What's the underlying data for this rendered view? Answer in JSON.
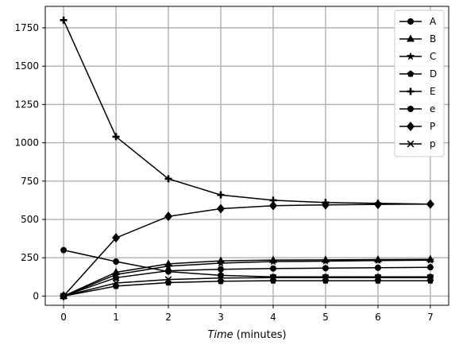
{
  "chart_data": {
    "type": "line",
    "title": "",
    "xlabel_italic": "Time",
    "xlabel_rest": " (minutes)",
    "ylabel": "",
    "x": [
      0,
      1,
      2,
      3,
      4,
      5,
      6,
      7
    ],
    "xticks": [
      "0",
      "1",
      "2",
      "3",
      "4",
      "5",
      "6",
      "7"
    ],
    "yticks": [
      "0",
      "250",
      "500",
      "750",
      "1000",
      "1250",
      "1500",
      "1750"
    ],
    "xlim": [
      -0.35,
      7.35
    ],
    "ylim": [
      -60,
      1890
    ],
    "grid": true,
    "legend_position": "top-right",
    "series": [
      {
        "name": "A",
        "marker": "circle",
        "values": [
          0,
          120,
          165,
          175,
          180,
          182,
          185,
          188
        ]
      },
      {
        "name": "B",
        "marker": "triangle",
        "values": [
          0,
          155,
          210,
          230,
          235,
          236,
          238,
          240
        ]
      },
      {
        "name": "C",
        "marker": "star",
        "values": [
          0,
          140,
          195,
          215,
          225,
          228,
          232,
          234
        ]
      },
      {
        "name": "D",
        "marker": "pentagon",
        "values": [
          0,
          65,
          88,
          97,
          100,
          100,
          100,
          100
        ]
      },
      {
        "name": "E",
        "marker": "plus",
        "values": [
          1800,
          1040,
          765,
          660,
          625,
          610,
          605,
          600
        ]
      },
      {
        "name": "e",
        "marker": "circle",
        "values": [
          300,
          225,
          160,
          135,
          125,
          125,
          125,
          125
        ]
      },
      {
        "name": "P",
        "marker": "diamond",
        "values": [
          0,
          380,
          520,
          570,
          590,
          595,
          598,
          600
        ]
      },
      {
        "name": "p",
        "marker": "x",
        "values": [
          0,
          85,
          108,
          118,
          120,
          120,
          120,
          120
        ]
      }
    ]
  }
}
